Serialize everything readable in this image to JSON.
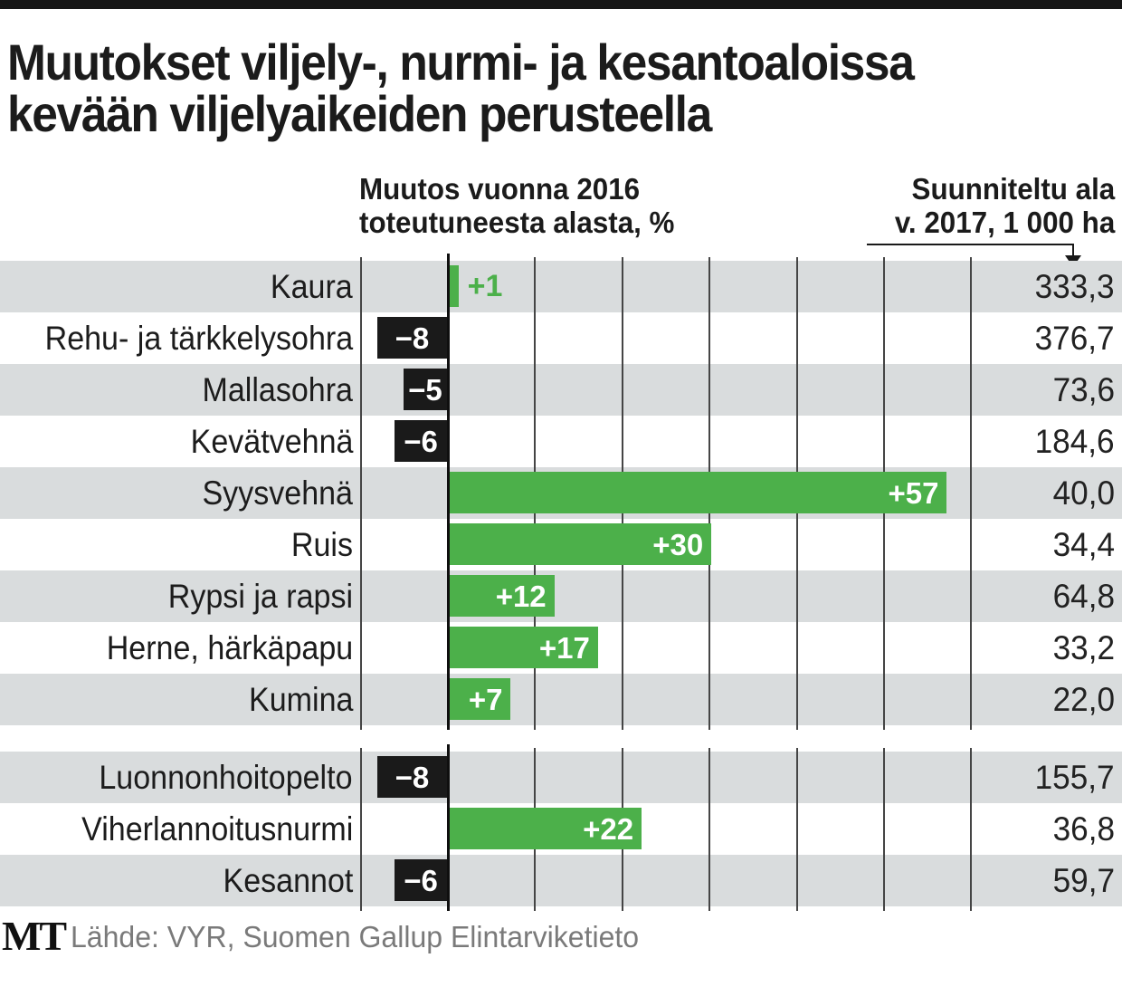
{
  "page": {
    "title_line1": "Muutokset viljely-, nurmi- ja kesantoaloissa",
    "title_line2": "kevään viljelyaikeiden perusteella",
    "header_change_line1": "Muutos vuonna 2016",
    "header_change_line2": "toteutuneesta alasta, %",
    "header_planned_line1": "Suunniteltu ala",
    "header_planned_line2": "v. 2017, 1 000 ha",
    "footer": {
      "logo": "MT",
      "source": "Lähde: VYR, Suomen Gallup Elintarviketieto"
    }
  },
  "colors": {
    "positive_bar": "#4cb04a",
    "negative_bar": "#1a1a1a",
    "outside_label_green": "#4cb04a",
    "row_stripe_gray": "#d9dcdd",
    "grid_line": "#454545",
    "axis_line": "#0f0f0f",
    "top_bar": "#161616",
    "source_text": "#7a7a7a"
  },
  "chart_data": {
    "type": "bar",
    "orientation": "horizontal",
    "title": "Muutokset viljely-, nurmi- ja kesantoaloissa kevään viljelyaikeiden perusteella",
    "value_axis": {
      "label": "Muutos vuonna 2016 toteutuneesta alasta, %",
      "min": -10,
      "max": 60,
      "gridline_step": 10,
      "unit": "%",
      "grid": "on"
    },
    "secondary_column_label": "Suunniteltu ala v. 2017, 1 000 ha",
    "groups": [
      {
        "rows": [
          {
            "label": "Kaura",
            "change_pct": 1,
            "change_label": "+1",
            "planned_area": "333,3",
            "bar_label_style": "outside-green"
          },
          {
            "label": "Rehu- ja tärkkelysohra",
            "change_pct": -8,
            "change_label": "−8",
            "planned_area": "376,7"
          },
          {
            "label": "Mallasohra",
            "change_pct": -5,
            "change_label": "−5",
            "planned_area": "73,6"
          },
          {
            "label": "Kevätvehnä",
            "change_pct": -6,
            "change_label": "−6",
            "planned_area": "184,6"
          },
          {
            "label": "Syysvehnä",
            "change_pct": 57,
            "change_label": "+57",
            "planned_area": "40,0"
          },
          {
            "label": "Ruis",
            "change_pct": 30,
            "change_label": "+30",
            "planned_area": "34,4"
          },
          {
            "label": "Rypsi ja rapsi",
            "change_pct": 12,
            "change_label": "+12",
            "planned_area": "64,8"
          },
          {
            "label": "Herne, härkäpapu",
            "change_pct": 17,
            "change_label": "+17",
            "planned_area": "33,2"
          },
          {
            "label": "Kumina",
            "change_pct": 7,
            "change_label": "+7",
            "planned_area": "22,0"
          }
        ]
      },
      {
        "rows": [
          {
            "label": "Luonnonhoitopelto",
            "change_pct": -8,
            "change_label": "−8",
            "planned_area": "155,7"
          },
          {
            "label": "Viherlannoitusnurmi",
            "change_pct": 22,
            "change_label": "+22",
            "planned_area": "36,8"
          },
          {
            "label": "Kesannot",
            "change_pct": -6,
            "change_label": "−6",
            "planned_area": "59,7"
          }
        ]
      }
    ]
  }
}
